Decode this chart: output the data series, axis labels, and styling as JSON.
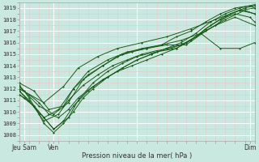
{
  "xlabel": "Pression niveau de la mer( hPa )",
  "bg_color": "#c8e8e0",
  "grid_major_color": "#b0d8d0",
  "grid_minor_color": "#c0e0d8",
  "line_color": "#1a5c1a",
  "xlim": [
    0,
    96
  ],
  "ylim": [
    1007.5,
    1019.5
  ],
  "yticks": [
    1008,
    1009,
    1010,
    1011,
    1012,
    1013,
    1014,
    1015,
    1016,
    1017,
    1018,
    1019
  ],
  "xtick_positions": [
    2,
    14,
    48,
    94
  ],
  "xtick_labels": [
    "Jeu Sam",
    "Ven",
    "",
    "Dim"
  ],
  "lines": [
    {
      "x": [
        0,
        2,
        4,
        6,
        8,
        10,
        14,
        18,
        22,
        26,
        30,
        36,
        42,
        48,
        54,
        60,
        66,
        72,
        78,
        84,
        90,
        96
      ],
      "y": [
        1012.3,
        1011.8,
        1011.2,
        1010.5,
        1009.8,
        1009.0,
        1008.2,
        1009.0,
        1010.0,
        1011.2,
        1012.0,
        1013.0,
        1013.8,
        1014.5,
        1015.0,
        1015.5,
        1016.0,
        1016.8,
        1017.8,
        1018.5,
        1019.0,
        1019.3
      ]
    },
    {
      "x": [
        0,
        2,
        6,
        10,
        14,
        18,
        22,
        28,
        34,
        40,
        46,
        52,
        58,
        64,
        70,
        76,
        82,
        88,
        94,
        96
      ],
      "y": [
        1011.5,
        1011.2,
        1010.5,
        1009.5,
        1008.5,
        1009.2,
        1010.5,
        1011.8,
        1012.8,
        1013.5,
        1014.0,
        1014.5,
        1015.0,
        1015.5,
        1016.2,
        1017.2,
        1018.0,
        1018.5,
        1018.2,
        1017.8
      ]
    },
    {
      "x": [
        0,
        4,
        8,
        12,
        16,
        20,
        24,
        30,
        36,
        42,
        48,
        54,
        60,
        66,
        72,
        78,
        84,
        90,
        96
      ],
      "y": [
        1012.0,
        1011.5,
        1010.8,
        1009.8,
        1009.5,
        1010.2,
        1011.2,
        1012.2,
        1013.0,
        1013.8,
        1014.5,
        1015.0,
        1015.5,
        1015.8,
        1016.5,
        1017.5,
        1018.3,
        1018.8,
        1018.5
      ]
    },
    {
      "x": [
        0,
        4,
        10,
        16,
        20,
        26,
        32,
        38,
        44,
        50,
        56,
        62,
        68,
        74,
        80,
        86,
        92,
        96
      ],
      "y": [
        1011.8,
        1011.0,
        1009.2,
        1009.8,
        1011.0,
        1012.3,
        1013.2,
        1014.0,
        1014.5,
        1015.0,
        1015.3,
        1015.5,
        1016.0,
        1016.8,
        1017.5,
        1018.5,
        1019.0,
        1019.2
      ]
    },
    {
      "x": [
        0,
        6,
        12,
        18,
        22,
        28,
        34,
        40,
        46,
        52,
        58,
        64,
        70,
        76,
        82,
        88,
        94,
        96
      ],
      "y": [
        1012.5,
        1011.8,
        1010.2,
        1010.5,
        1012.0,
        1013.2,
        1014.0,
        1014.8,
        1015.2,
        1015.5,
        1015.8,
        1016.5,
        1017.0,
        1017.8,
        1018.5,
        1019.0,
        1019.2,
        1019.0
      ]
    },
    {
      "x": [
        0,
        6,
        14,
        20,
        24,
        30,
        36,
        42,
        48,
        56,
        64,
        72,
        80,
        88,
        96
      ],
      "y": [
        1011.5,
        1010.5,
        1008.5,
        1009.5,
        1011.0,
        1012.5,
        1013.5,
        1014.2,
        1014.8,
        1015.2,
        1015.5,
        1016.5,
        1017.5,
        1018.2,
        1017.5
      ]
    },
    {
      "x": [
        0,
        8,
        14,
        20,
        26,
        34,
        42,
        50,
        58,
        66,
        74,
        82,
        90,
        96
      ],
      "y": [
        1012.2,
        1010.5,
        1009.8,
        1010.8,
        1012.8,
        1014.0,
        1015.0,
        1015.5,
        1015.8,
        1016.2,
        1016.8,
        1015.5,
        1015.5,
        1016.0
      ]
    },
    {
      "x": [
        0,
        10,
        16,
        22,
        28,
        36,
        44,
        52,
        60,
        68,
        76,
        84,
        92,
        96
      ],
      "y": [
        1011.8,
        1009.5,
        1010.2,
        1012.0,
        1013.5,
        1014.5,
        1015.2,
        1015.5,
        1015.8,
        1015.8,
        1017.0,
        1018.0,
        1018.8,
        1018.5
      ]
    },
    {
      "x": [
        0,
        10,
        18,
        24,
        32,
        40,
        50,
        60,
        70,
        80,
        90,
        96
      ],
      "y": [
        1012.0,
        1010.8,
        1012.2,
        1013.8,
        1014.8,
        1015.5,
        1016.0,
        1016.5,
        1017.2,
        1018.0,
        1018.8,
        1019.0
      ]
    }
  ]
}
